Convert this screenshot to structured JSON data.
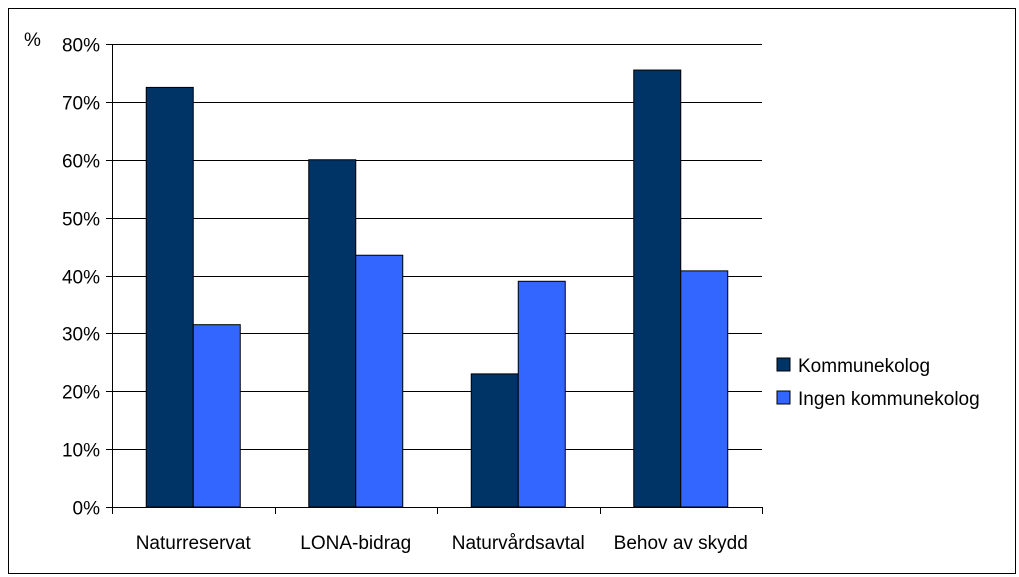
{
  "chart_data": {
    "type": "bar",
    "unit_label": "%",
    "categories": [
      "Naturreservat",
      "LONA-bidrag",
      "Naturvårdsavtal",
      "Behov av skydd"
    ],
    "series": [
      {
        "name": "Kommunekolog",
        "values": [
          72.5,
          60,
          23,
          75.5
        ],
        "color": "#003366"
      },
      {
        "name": "Ingen kommunekolog",
        "values": [
          31.5,
          43.5,
          39,
          40.8
        ],
        "color": "#3366FF"
      }
    ],
    "ylim": [
      0,
      80
    ],
    "yticks": [
      0,
      10,
      20,
      30,
      40,
      50,
      60,
      70,
      80
    ],
    "ytick_labels": [
      "0%",
      "10%",
      "20%",
      "30%",
      "40%",
      "50%",
      "60%",
      "70%",
      "80%"
    ],
    "grid": true,
    "legend_position": "right"
  }
}
